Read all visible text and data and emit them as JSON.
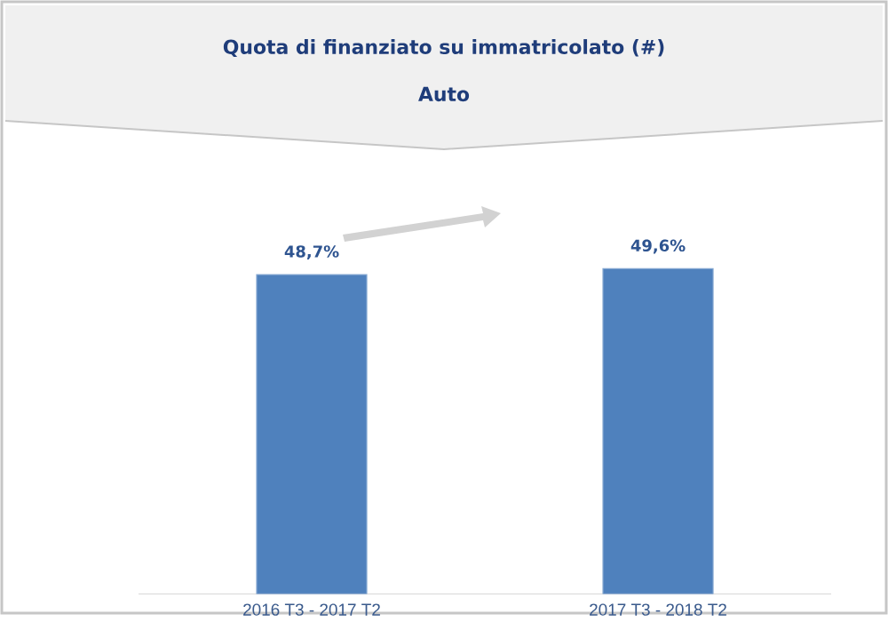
{
  "chart_data": {
    "type": "bar",
    "title": "Quota di finanziato su immatricolato (#)",
    "subtitle": "Auto",
    "categories": [
      "2016 T3 - 2017 T2",
      "2017 T3 - 2018 T2"
    ],
    "values": [
      48.7,
      49.6
    ],
    "value_labels": [
      "48,7%",
      "49,6%"
    ],
    "color": "#4f81bd"
  }
}
